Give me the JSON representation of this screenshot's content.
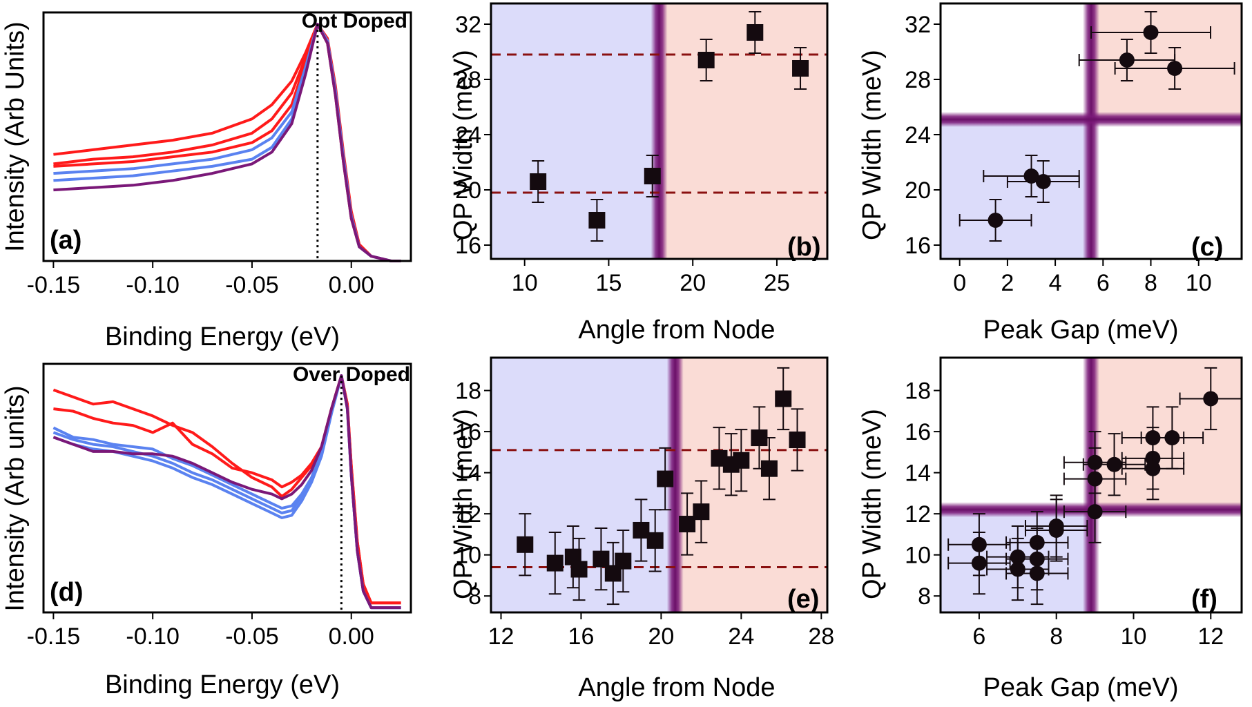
{
  "colors": {
    "red": "#ff1a1a",
    "blue": "#5a82f0",
    "purple": "#7a1878",
    "bg_blue": "#dcdcfa",
    "bg_red": "#fadcd6",
    "band": "#7a1878",
    "dashed": "#8a1010",
    "marker": "#140a0f"
  },
  "chart_data": [
    {
      "id": "a",
      "type": "line",
      "panel_label": "(a)",
      "title": "Opt Doped",
      "xlabel": "Binding Energy (eV)",
      "ylabel": "Intensity (Arb Units)",
      "xlim": [
        -0.155,
        0.03
      ],
      "ylim": [
        0,
        1.05
      ],
      "xticks": [
        -0.15,
        -0.1,
        -0.05,
        0.0
      ],
      "xtick_labels": [
        "-0.15",
        "-0.10",
        "-0.05",
        "0.00"
      ],
      "peak_x": -0.017,
      "series": [
        {
          "name": "red-1",
          "color": "red",
          "x": [
            -0.15,
            -0.13,
            -0.11,
            -0.09,
            -0.07,
            -0.05,
            -0.04,
            -0.03,
            -0.023,
            -0.017,
            -0.012,
            -0.008,
            -0.004,
            0.0,
            0.004,
            0.01,
            0.02,
            0.025
          ],
          "y": [
            0.45,
            0.47,
            0.49,
            0.51,
            0.54,
            0.6,
            0.66,
            0.76,
            0.88,
            1.0,
            0.92,
            0.7,
            0.42,
            0.18,
            0.06,
            0.02,
            0.0,
            0.0
          ]
        },
        {
          "name": "red-2",
          "color": "red",
          "x": [
            -0.15,
            -0.13,
            -0.11,
            -0.09,
            -0.07,
            -0.05,
            -0.04,
            -0.03,
            -0.023,
            -0.017,
            -0.012,
            -0.008,
            -0.004,
            0.0,
            0.004,
            0.01,
            0.02,
            0.025
          ],
          "y": [
            0.41,
            0.43,
            0.44,
            0.46,
            0.49,
            0.54,
            0.6,
            0.71,
            0.86,
            1.0,
            0.93,
            0.72,
            0.44,
            0.2,
            0.07,
            0.02,
            0.0,
            0.0
          ]
        },
        {
          "name": "red-3",
          "color": "red",
          "x": [
            -0.15,
            -0.13,
            -0.11,
            -0.09,
            -0.07,
            -0.05,
            -0.04,
            -0.03,
            -0.023,
            -0.017,
            -0.012,
            -0.008,
            -0.004,
            0.0,
            0.004,
            0.01,
            0.02,
            0.025
          ],
          "y": [
            0.4,
            0.41,
            0.42,
            0.44,
            0.46,
            0.5,
            0.55,
            0.66,
            0.84,
            1.0,
            0.94,
            0.74,
            0.46,
            0.21,
            0.07,
            0.02,
            0.0,
            0.0
          ]
        },
        {
          "name": "blue-1",
          "color": "blue",
          "x": [
            -0.15,
            -0.13,
            -0.11,
            -0.09,
            -0.07,
            -0.05,
            -0.04,
            -0.03,
            -0.023,
            -0.017,
            -0.012,
            -0.008,
            -0.004,
            0.0,
            0.004,
            0.01,
            0.02,
            0.025
          ],
          "y": [
            0.37,
            0.38,
            0.39,
            0.41,
            0.43,
            0.47,
            0.52,
            0.63,
            0.82,
            1.0,
            0.93,
            0.72,
            0.44,
            0.19,
            0.06,
            0.02,
            0.0,
            0.0
          ]
        },
        {
          "name": "blue-2",
          "color": "blue",
          "x": [
            -0.15,
            -0.13,
            -0.11,
            -0.09,
            -0.07,
            -0.05,
            -0.04,
            -0.03,
            -0.023,
            -0.017,
            -0.012,
            -0.008,
            -0.004,
            0.0,
            0.004,
            0.01,
            0.02,
            0.025
          ],
          "y": [
            0.34,
            0.35,
            0.36,
            0.38,
            0.4,
            0.43,
            0.48,
            0.6,
            0.8,
            1.0,
            0.93,
            0.71,
            0.43,
            0.19,
            0.06,
            0.02,
            0.0,
            0.0
          ]
        },
        {
          "name": "purple-1",
          "color": "purple",
          "x": [
            -0.15,
            -0.13,
            -0.11,
            -0.09,
            -0.07,
            -0.05,
            -0.04,
            -0.03,
            -0.023,
            -0.017,
            -0.012,
            -0.008,
            -0.004,
            0.0,
            0.004,
            0.01,
            0.02,
            0.025
          ],
          "y": [
            0.3,
            0.31,
            0.32,
            0.34,
            0.37,
            0.41,
            0.46,
            0.58,
            0.79,
            1.0,
            0.92,
            0.7,
            0.42,
            0.18,
            0.06,
            0.02,
            0.0,
            0.0
          ]
        }
      ]
    },
    {
      "id": "d",
      "type": "line",
      "panel_label": "(d)",
      "title": "Over Doped",
      "xlabel": "Binding Energy (eV)",
      "ylabel": "Intensity (Arb units)",
      "xlim": [
        -0.155,
        0.03
      ],
      "ylim": [
        0,
        1.05
      ],
      "xticks": [
        -0.15,
        -0.1,
        -0.05,
        0.0
      ],
      "xtick_labels": [
        "-0.15",
        "-0.10",
        "-0.05",
        "0.00"
      ],
      "peak_x": -0.005,
      "series": [
        {
          "name": "red-1",
          "color": "red",
          "x": [
            -0.15,
            -0.14,
            -0.13,
            -0.12,
            -0.11,
            -0.1,
            -0.09,
            -0.08,
            -0.07,
            -0.06,
            -0.05,
            -0.04,
            -0.035,
            -0.03,
            -0.025,
            -0.02,
            -0.015,
            -0.01,
            -0.005,
            -0.002,
            0.0,
            0.003,
            0.006,
            0.01,
            0.025
          ],
          "y": [
            0.94,
            0.91,
            0.88,
            0.89,
            0.86,
            0.83,
            0.79,
            0.76,
            0.7,
            0.63,
            0.57,
            0.53,
            0.49,
            0.52,
            0.57,
            0.62,
            0.7,
            0.86,
            1.0,
            0.88,
            0.62,
            0.3,
            0.12,
            0.04,
            0.04
          ]
        },
        {
          "name": "red-2",
          "color": "red",
          "x": [
            -0.15,
            -0.14,
            -0.13,
            -0.12,
            -0.11,
            -0.1,
            -0.09,
            -0.08,
            -0.07,
            -0.06,
            -0.05,
            -0.04,
            -0.035,
            -0.03,
            -0.025,
            -0.02,
            -0.015,
            -0.01,
            -0.005,
            -0.002,
            0.0,
            0.003,
            0.006,
            0.01,
            0.025
          ],
          "y": [
            0.86,
            0.85,
            0.82,
            0.8,
            0.79,
            0.76,
            0.8,
            0.71,
            0.67,
            0.61,
            0.59,
            0.56,
            0.53,
            0.55,
            0.58,
            0.63,
            0.7,
            0.86,
            1.0,
            0.88,
            0.62,
            0.3,
            0.12,
            0.04,
            0.04
          ]
        },
        {
          "name": "blue-1",
          "color": "blue",
          "x": [
            -0.15,
            -0.14,
            -0.13,
            -0.12,
            -0.11,
            -0.1,
            -0.09,
            -0.08,
            -0.07,
            -0.06,
            -0.05,
            -0.04,
            -0.035,
            -0.03,
            -0.025,
            -0.02,
            -0.015,
            -0.01,
            -0.005,
            -0.002,
            0.0,
            0.003,
            0.006,
            0.01,
            0.025
          ],
          "y": [
            0.78,
            0.74,
            0.73,
            0.71,
            0.7,
            0.69,
            0.65,
            0.62,
            0.58,
            0.54,
            0.5,
            0.46,
            0.44,
            0.45,
            0.5,
            0.57,
            0.68,
            0.85,
            1.0,
            0.86,
            0.58,
            0.26,
            0.09,
            0.02,
            0.02
          ]
        },
        {
          "name": "blue-2",
          "color": "blue",
          "x": [
            -0.15,
            -0.14,
            -0.13,
            -0.12,
            -0.11,
            -0.1,
            -0.09,
            -0.08,
            -0.07,
            -0.06,
            -0.05,
            -0.04,
            -0.035,
            -0.03,
            -0.025,
            -0.02,
            -0.015,
            -0.01,
            -0.005,
            -0.002,
            0.0,
            0.003,
            0.006,
            0.01,
            0.025
          ],
          "y": [
            0.76,
            0.73,
            0.71,
            0.7,
            0.68,
            0.66,
            0.63,
            0.59,
            0.56,
            0.52,
            0.48,
            0.44,
            0.42,
            0.43,
            0.49,
            0.56,
            0.67,
            0.85,
            1.0,
            0.86,
            0.58,
            0.26,
            0.09,
            0.02,
            0.02
          ]
        },
        {
          "name": "blue-3",
          "color": "blue",
          "x": [
            -0.15,
            -0.14,
            -0.13,
            -0.12,
            -0.11,
            -0.1,
            -0.09,
            -0.08,
            -0.07,
            -0.06,
            -0.05,
            -0.04,
            -0.035,
            -0.03,
            -0.025,
            -0.02,
            -0.015,
            -0.01,
            -0.005,
            -0.002,
            0.0,
            0.003,
            0.006,
            0.01,
            0.025
          ],
          "y": [
            0.74,
            0.71,
            0.69,
            0.68,
            0.66,
            0.64,
            0.61,
            0.57,
            0.54,
            0.5,
            0.46,
            0.42,
            0.4,
            0.41,
            0.47,
            0.55,
            0.66,
            0.84,
            1.0,
            0.86,
            0.58,
            0.26,
            0.09,
            0.02,
            0.02
          ]
        },
        {
          "name": "purple-1",
          "color": "purple",
          "x": [
            -0.15,
            -0.14,
            -0.13,
            -0.12,
            -0.11,
            -0.1,
            -0.09,
            -0.08,
            -0.07,
            -0.06,
            -0.05,
            -0.04,
            -0.035,
            -0.03,
            -0.025,
            -0.02,
            -0.015,
            -0.01,
            -0.005,
            -0.002,
            0.0,
            0.003,
            0.006,
            0.01,
            0.025
          ],
          "y": [
            0.74,
            0.71,
            0.68,
            0.68,
            0.67,
            0.67,
            0.66,
            0.63,
            0.59,
            0.55,
            0.52,
            0.5,
            0.48,
            0.5,
            0.54,
            0.6,
            0.7,
            0.86,
            1.0,
            0.86,
            0.58,
            0.26,
            0.09,
            0.02,
            0.02
          ]
        }
      ]
    },
    {
      "id": "b",
      "type": "scatter",
      "panel_label": "(b)",
      "xlabel": "Angle from Node",
      "ylabel": "QP Width (meV)",
      "xlim": [
        8,
        28
      ],
      "ylim": [
        15,
        33.5
      ],
      "xticks": [
        10,
        15,
        20,
        25
      ],
      "yticks": [
        16,
        20,
        24,
        28,
        32
      ],
      "marker": "square",
      "regions": {
        "split_x": 18,
        "band_x": 18,
        "hband_y": null
      },
      "hlines": [
        29.8,
        19.8
      ],
      "points": [
        {
          "x": 10.8,
          "y": 20.6,
          "yerr": 1.5
        },
        {
          "x": 14.3,
          "y": 17.8,
          "yerr": 1.5
        },
        {
          "x": 17.6,
          "y": 21.0,
          "yerr": 1.5
        },
        {
          "x": 20.8,
          "y": 29.4,
          "yerr": 1.5
        },
        {
          "x": 23.7,
          "y": 31.4,
          "yerr": 1.5
        },
        {
          "x": 26.4,
          "y": 28.8,
          "yerr": 1.5
        }
      ]
    },
    {
      "id": "c",
      "type": "scatter",
      "panel_label": "(c)",
      "xlabel": "Peak Gap (meV)",
      "ylabel": "QP Width (meV)",
      "xlim": [
        -0.8,
        11.8
      ],
      "ylim": [
        15,
        33.5
      ],
      "xticks": [
        0,
        2,
        4,
        6,
        8,
        10
      ],
      "yticks": [
        16,
        20,
        24,
        28,
        32
      ],
      "marker": "circle",
      "regions": {
        "split_x": 5.5,
        "band_x": 5.5,
        "hband_y": 25.1
      },
      "hlines": [],
      "points": [
        {
          "x": 1.5,
          "y": 17.8,
          "xerr": 1.5,
          "yerr": 1.5
        },
        {
          "x": 3.0,
          "y": 21.0,
          "xerr": 2.0,
          "yerr": 1.5
        },
        {
          "x": 3.5,
          "y": 20.6,
          "xerr": 1.5,
          "yerr": 1.5
        },
        {
          "x": 7.0,
          "y": 29.4,
          "xerr": 2.0,
          "yerr": 1.5
        },
        {
          "x": 8.0,
          "y": 31.4,
          "xerr": 2.5,
          "yerr": 1.5
        },
        {
          "x": 9.0,
          "y": 28.8,
          "xerr": 2.5,
          "yerr": 1.5
        }
      ]
    },
    {
      "id": "e",
      "type": "scatter",
      "panel_label": "(e)",
      "xlabel": "Angle from Node",
      "ylabel": "QP Width (meV)",
      "xlim": [
        11.5,
        28.3
      ],
      "ylim": [
        7.2,
        19.6
      ],
      "xticks": [
        12,
        16,
        20,
        24,
        28
      ],
      "yticks": [
        8,
        10,
        12,
        14,
        16,
        18
      ],
      "marker": "square",
      "regions": {
        "split_x": 20.7,
        "band_x": 20.7,
        "hband_y": null
      },
      "hlines": [
        15.1,
        9.4
      ],
      "points": [
        {
          "x": 13.2,
          "y": 10.5,
          "yerr": 1.5
        },
        {
          "x": 14.7,
          "y": 9.6,
          "yerr": 1.5
        },
        {
          "x": 15.6,
          "y": 9.9,
          "yerr": 1.5
        },
        {
          "x": 15.9,
          "y": 9.3,
          "yerr": 1.5
        },
        {
          "x": 17.0,
          "y": 9.8,
          "yerr": 1.5
        },
        {
          "x": 17.6,
          "y": 9.1,
          "yerr": 1.5
        },
        {
          "x": 18.1,
          "y": 9.7,
          "yerr": 1.5
        },
        {
          "x": 19.0,
          "y": 11.2,
          "yerr": 1.5
        },
        {
          "x": 19.7,
          "y": 10.7,
          "yerr": 1.5
        },
        {
          "x": 20.2,
          "y": 13.7,
          "yerr": 1.5
        },
        {
          "x": 21.3,
          "y": 11.5,
          "yerr": 1.5
        },
        {
          "x": 22.0,
          "y": 12.1,
          "yerr": 1.5
        },
        {
          "x": 22.9,
          "y": 14.7,
          "yerr": 1.5
        },
        {
          "x": 23.5,
          "y": 14.4,
          "yerr": 1.5
        },
        {
          "x": 24.0,
          "y": 14.6,
          "yerr": 1.5
        },
        {
          "x": 24.9,
          "y": 15.7,
          "yerr": 1.5
        },
        {
          "x": 25.4,
          "y": 14.2,
          "yerr": 1.5
        },
        {
          "x": 26.1,
          "y": 17.6,
          "yerr": 1.5
        },
        {
          "x": 26.8,
          "y": 15.6,
          "yerr": 1.5
        }
      ]
    },
    {
      "id": "f",
      "type": "scatter",
      "panel_label": "(f)",
      "xlabel": "Peak Gap (meV)",
      "ylabel": "QP Width (meV)",
      "xlim": [
        5.0,
        12.8
      ],
      "ylim": [
        7.2,
        19.6
      ],
      "xticks": [
        6,
        8,
        10,
        12
      ],
      "yticks": [
        8,
        10,
        12,
        14,
        16,
        18
      ],
      "marker": "circle",
      "regions": {
        "split_x": 8.9,
        "band_x": 8.9,
        "hband_y": 12.2
      },
      "hlines": [],
      "points": [
        {
          "x": 6.0,
          "y": 10.5,
          "xerr": 0.8,
          "yerr": 1.5
        },
        {
          "x": 6.0,
          "y": 9.6,
          "xerr": 0.8,
          "yerr": 1.5
        },
        {
          "x": 7.0,
          "y": 9.9,
          "xerr": 0.8,
          "yerr": 1.5
        },
        {
          "x": 7.0,
          "y": 9.3,
          "xerr": 0.8,
          "yerr": 1.5
        },
        {
          "x": 7.5,
          "y": 10.6,
          "xerr": 0.8,
          "yerr": 1.5
        },
        {
          "x": 7.5,
          "y": 9.8,
          "xerr": 0.8,
          "yerr": 1.5
        },
        {
          "x": 7.5,
          "y": 9.1,
          "xerr": 0.8,
          "yerr": 1.5
        },
        {
          "x": 8.0,
          "y": 11.4,
          "xerr": 0.8,
          "yerr": 1.5
        },
        {
          "x": 8.0,
          "y": 11.2,
          "xerr": 0.8,
          "yerr": 1.5
        },
        {
          "x": 9.0,
          "y": 13.7,
          "xerr": 0.8,
          "yerr": 1.5
        },
        {
          "x": 9.0,
          "y": 14.5,
          "xerr": 0.8,
          "yerr": 1.5
        },
        {
          "x": 9.0,
          "y": 12.1,
          "xerr": 0.8,
          "yerr": 1.5
        },
        {
          "x": 9.5,
          "y": 14.4,
          "xerr": 0.8,
          "yerr": 1.5
        },
        {
          "x": 10.5,
          "y": 14.7,
          "xerr": 0.8,
          "yerr": 1.5
        },
        {
          "x": 10.5,
          "y": 14.2,
          "xerr": 0.8,
          "yerr": 1.5
        },
        {
          "x": 10.5,
          "y": 15.7,
          "xerr": 0.8,
          "yerr": 1.5
        },
        {
          "x": 11.0,
          "y": 15.7,
          "xerr": 0.8,
          "yerr": 1.5
        },
        {
          "x": 12.0,
          "y": 17.6,
          "xerr": 0.8,
          "yerr": 1.5
        }
      ]
    }
  ]
}
